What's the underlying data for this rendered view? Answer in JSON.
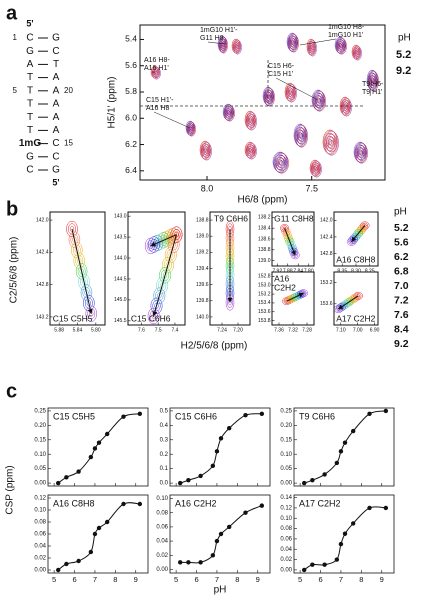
{
  "panel_a": {
    "label": "a",
    "sequence": {
      "top": "5'",
      "bottom": "5'",
      "rows": [
        {
          "ln": "1",
          "l": "C",
          "r": "G"
        },
        {
          "l": "G",
          "r": "C"
        },
        {
          "l": "A",
          "r": "T"
        },
        {
          "l": "T",
          "r": "A"
        },
        {
          "ln": "5",
          "l": "T",
          "r": "A",
          "rn": "20"
        },
        {
          "l": "T",
          "r": "A"
        },
        {
          "l": "T",
          "r": "A"
        },
        {
          "l": "T",
          "r": "A"
        },
        {
          "l": "1mG",
          "r": "C",
          "rn": "15"
        },
        {
          "l": "G",
          "r": "C"
        },
        {
          "l": "C",
          "r": "G"
        }
      ]
    },
    "spectrum": {
      "xlabel": "H6/8 (ppm)",
      "ylabel": "H5/1' (ppm)",
      "xlim": [
        8.32,
        7.15
      ],
      "ylim": [
        5.29,
        6.47
      ],
      "xticks": [
        {
          "value": 8,
          "label": "8.0"
        },
        7.5
      ],
      "yticks": [
        5.4,
        5.6,
        5.8,
        {
          "value": 6,
          "label": "6.0"
        },
        6.2,
        6.4
      ],
      "annotations": [
        [
          "1mG10 H1'-",
          "G11 H8"
        ],
        [
          "1mG10 H8-",
          "1mG10 H1'"
        ],
        [
          "A16 H8-",
          "A16 H1'"
        ],
        [
          "C15 H6-",
          "C15 H1'"
        ],
        [
          "C15 H1'-",
          "A16 H8"
        ],
        [
          "T9 H6-",
          "T9 H1'"
        ]
      ],
      "legend_title": "pH",
      "legend": [
        "5.2",
        "9.2"
      ],
      "legend_colors": [
        "#d7191c",
        "#8e3ab5"
      ]
    }
  },
  "panel_b": {
    "label": "b",
    "xlabel": "H2/5/6/8 (ppm)",
    "ylabel": "C2/5/6/8 (ppm)",
    "legend_title": "pH",
    "legend": [
      "5.2",
      "5.6",
      "6.2",
      "6.8",
      "7.0",
      "7.2",
      "7.6",
      "8.4",
      "9.2"
    ],
    "colors": [
      "#e41a1c",
      "#f0643c",
      "#f39c12",
      "#d4b800",
      "#2ecc40",
      "#5fd3c8",
      "#3a8fd6",
      "#1f2fd6",
      "#9b30d0"
    ],
    "boxes": [
      {
        "label": [
          "C15 C5H5"
        ],
        "xlim": [
          5.9,
          5.78
        ],
        "ylim": [
          141.9,
          143.3
        ],
        "xticks": [
          5.88,
          5.84,
          {
            "value": 5.8,
            "label": "5.80"
          }
        ],
        "yticks": [
          {
            "value": 142,
            "label": "142.0"
          },
          142.4,
          142.8,
          143.2
        ]
      },
      {
        "label": [
          "C15 C6H6"
        ],
        "xlim": [
          7.68,
          7.34
        ],
        "ylim": [
          142.9,
          145.6
        ],
        "xticks": [
          7.6,
          7.5,
          7.4
        ],
        "yticks": [
          {
            "value": 143,
            "label": "143.0"
          },
          143.5,
          {
            "value": 144,
            "label": "144.0"
          },
          144.5,
          {
            "value": 145,
            "label": "145.0"
          },
          145.5
        ]
      },
      {
        "label": [
          "T9 C6H6"
        ],
        "xlim": [
          7.27,
          7.17
        ],
        "ylim": [
          138.7,
          140.1
        ],
        "xticks": [
          7.24,
          {
            "value": 7.2,
            "label": "7.20"
          }
        ],
        "yticks": [
          138.8,
          {
            "value": 139,
            "label": "139.0"
          },
          139.2,
          139.4,
          139.6,
          139.8,
          {
            "value": 140,
            "label": "140.0"
          }
        ]
      },
      {
        "label": [
          "G11 C8H8"
        ],
        "xlim": [
          7.94,
          7.78
        ],
        "ylim": [
          138.1,
          139.1
        ],
        "xticks": [
          7.92,
          7.88,
          7.84,
          {
            "value": 7.8,
            "label": "7.80"
          }
        ],
        "yticks": [
          138.2,
          138.4,
          138.6,
          138.8,
          {
            "value": 139,
            "label": "139.0"
          }
        ]
      },
      {
        "label": [
          "A16",
          "C2H2"
        ],
        "xlim": [
          7.38,
          7.26
        ],
        "ylim": [
          152.7,
          153.9
        ],
        "xticks": [
          7.36,
          7.32,
          7.28
        ],
        "yticks": [
          152.8,
          {
            "value": 153,
            "label": "153.0"
          },
          153.2,
          153.4,
          153.6,
          153.8
        ]
      },
      {
        "label": [
          "A16 C8H8"
        ],
        "xlim": [
          8.38,
          8.22
        ],
        "ylim": [
          141.8,
          143.1
        ],
        "xticks": [
          8.35,
          {
            "value": 8.3,
            "label": "8.30"
          },
          8.25
        ],
        "yticks": [
          {
            "value": 142,
            "label": "142.0"
          },
          142.4,
          142.8
        ]
      },
      {
        "label": [
          "A17 C2H2"
        ],
        "xlim": [
          7.14,
          6.88
        ],
        "ylim": [
          153,
          154
        ],
        "xticks": [
          {
            "value": 7.1,
            "label": "7.10"
          },
          {
            "value": 7,
            "label": "7.00"
          },
          {
            "value": 6.9,
            "label": "6.90"
          }
        ],
        "yticks": [
          153.2,
          153.6
        ]
      }
    ]
  },
  "panel_c": {
    "label": "c",
    "xlabel": "pH",
    "ylabel": "CSP (ppm)",
    "ph": [
      5.2,
      5.6,
      6.2,
      6.8,
      7.0,
      7.2,
      7.6,
      8.4,
      9.2
    ],
    "xlim": [
      4.7,
      9.6
    ],
    "xticks": [
      5,
      6,
      7,
      8,
      9
    ],
    "plots": [
      {
        "title": "C15 C5H5",
        "ylim": [
          -0.01,
          0.26
        ],
        "yticks": [
          {
            "value": 0,
            "label": "0.00"
          },
          0.05,
          {
            "value": 0.1,
            "label": "0.10"
          },
          0.15,
          {
            "value": 0.2,
            "label": "0.20"
          },
          0.25
        ],
        "values": [
          0.0,
          0.02,
          0.04,
          0.09,
          0.12,
          0.14,
          0.17,
          0.23,
          0.24
        ]
      },
      {
        "title": "C15 C6H6",
        "ylim": [
          -0.02,
          0.52
        ],
        "yticks": [
          {
            "value": 0,
            "label": "0.0"
          },
          0.1,
          0.2,
          0.3,
          0.4,
          0.5
        ],
        "values": [
          0.0,
          0.02,
          0.05,
          0.12,
          0.22,
          0.31,
          0.38,
          0.47,
          0.48
        ]
      },
      {
        "title": "T9 C6H6",
        "ylim": [
          -0.01,
          0.26
        ],
        "yticks": [
          {
            "value": 0,
            "label": "0.00"
          },
          0.05,
          {
            "value": 0.1,
            "label": "0.10"
          },
          0.15,
          {
            "value": 0.2,
            "label": "0.20"
          },
          0.25
        ],
        "values": [
          0.0,
          0.01,
          0.03,
          0.07,
          0.11,
          0.14,
          0.18,
          0.24,
          0.25
        ]
      },
      {
        "title": "A16 C8H8",
        "ylim": [
          -0.005,
          0.125
        ],
        "yticks": [
          {
            "value": 0,
            "label": "0.00"
          },
          0.02,
          0.04,
          0.06,
          0.08,
          {
            "value": 0.1,
            "label": "0.10"
          },
          0.12
        ],
        "values": [
          0.0,
          0.01,
          0.015,
          0.03,
          0.06,
          0.07,
          0.08,
          0.11,
          0.11
        ]
      },
      {
        "title": "A16 C2H2",
        "ylim": [
          -0.005,
          0.105
        ],
        "yticks": [
          {
            "value": 0,
            "label": "0.00"
          },
          0.02,
          0.04,
          0.06,
          0.08,
          {
            "value": 0.1,
            "label": "0.10"
          }
        ],
        "values": [
          0.01,
          0.01,
          0.01,
          0.02,
          0.04,
          0.05,
          0.06,
          0.08,
          0.09
        ]
      },
      {
        "title": "A17 C2H2",
        "ylim": [
          -0.006,
          0.145
        ],
        "yticks": [
          {
            "value": 0,
            "label": "0.00"
          },
          0.02,
          0.04,
          0.06,
          0.08,
          {
            "value": 0.1,
            "label": "0.10"
          },
          0.12,
          0.14
        ],
        "values": [
          0.0,
          0.01,
          0.01,
          0.02,
          0.05,
          0.07,
          0.09,
          0.12,
          0.12
        ]
      }
    ]
  }
}
